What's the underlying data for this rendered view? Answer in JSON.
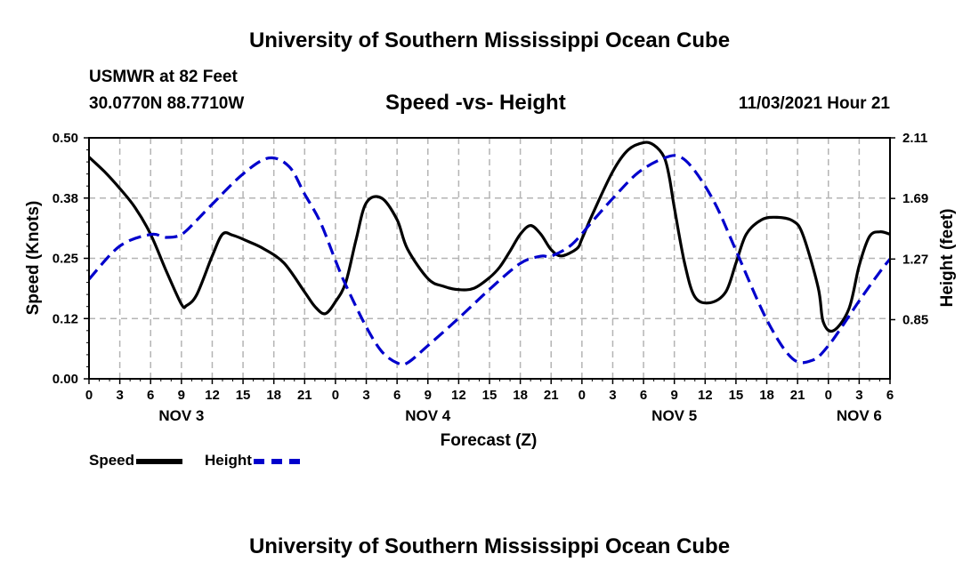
{
  "header": {
    "title": "University of Southern Mississippi Ocean Cube",
    "station": "USMWR at 82 Feet",
    "coordinates": "30.0770N  88.7710W",
    "subtitle": "Speed -vs- Height",
    "datetime": "11/03/2021 Hour 21"
  },
  "footer": {
    "title": "University of Southern Mississippi Ocean Cube"
  },
  "legend": {
    "speed_label": "Speed",
    "height_label": "Height"
  },
  "colors": {
    "speed": "#000000",
    "height": "#0000cc",
    "grid": "#b4b4b4"
  },
  "chart_data": {
    "type": "line",
    "title": "Speed -vs- Height",
    "xlabel": "Forecast (Z)",
    "ylabel": "Speed (Knots)",
    "y2label": "Height (feet)",
    "xlim": [
      0,
      78
    ],
    "ylim": [
      0,
      0.5
    ],
    "y2lim": [
      0.44,
      2.11
    ],
    "x_ticks": [
      0,
      3,
      6,
      9,
      12,
      15,
      18,
      21,
      24,
      27,
      30,
      33,
      36,
      39,
      42,
      45,
      48,
      51,
      54,
      57,
      60,
      63,
      66,
      69,
      72,
      75,
      78
    ],
    "x_tick_labels": [
      "0",
      "3",
      "6",
      "9",
      "12",
      "15",
      "18",
      "21",
      "0",
      "3",
      "6",
      "9",
      "12",
      "15",
      "18",
      "21",
      "0",
      "3",
      "6",
      "9",
      "12",
      "15",
      "18",
      "21",
      "0",
      "3",
      "6"
    ],
    "y_ticks": [
      0,
      0.125,
      0.25,
      0.375,
      0.5
    ],
    "y_tick_labels": [
      "0.00",
      "0.12",
      "0.25",
      "0.38",
      "0.50"
    ],
    "y2_ticks": [
      0.85,
      1.27,
      1.69,
      2.11
    ],
    "y2_tick_labels": [
      "0.85",
      "1.27",
      "1.69",
      "2.11"
    ],
    "day_labels": [
      {
        "x": 9,
        "label": "NOV 3"
      },
      {
        "x": 33,
        "label": "NOV 4"
      },
      {
        "x": 57,
        "label": "NOV 5"
      },
      {
        "x": 75,
        "label": "NOV 6"
      }
    ],
    "grid": true,
    "series": [
      {
        "name": "Speed",
        "axis": "left",
        "style": "solid",
        "x": [
          0,
          1.5,
          3,
          4.5,
          6,
          7.5,
          9,
          9.5,
          10.5,
          12,
          13,
          14,
          15.5,
          17,
          19,
          21,
          22,
          23,
          24,
          25,
          26,
          27,
          28.5,
          30,
          31,
          33,
          34.5,
          36,
          37.5,
          39,
          40,
          41,
          42,
          43,
          44,
          45,
          46,
          47.5,
          48,
          49,
          51,
          52.5,
          54,
          55,
          56,
          56.5,
          57,
          58,
          59,
          60.5,
          62,
          63,
          64,
          65.5,
          67,
          68.5,
          69.5,
          71,
          71.5,
          72.5,
          74,
          75,
          76,
          77,
          78
        ],
        "values": [
          0.46,
          0.43,
          0.395,
          0.355,
          0.3,
          0.225,
          0.155,
          0.152,
          0.175,
          0.255,
          0.3,
          0.298,
          0.285,
          0.27,
          0.24,
          0.18,
          0.15,
          0.135,
          0.16,
          0.2,
          0.288,
          0.365,
          0.375,
          0.33,
          0.27,
          0.208,
          0.192,
          0.185,
          0.188,
          0.21,
          0.232,
          0.265,
          0.3,
          0.318,
          0.3,
          0.268,
          0.255,
          0.27,
          0.29,
          0.34,
          0.43,
          0.475,
          0.49,
          0.485,
          0.46,
          0.42,
          0.355,
          0.24,
          0.17,
          0.158,
          0.18,
          0.24,
          0.3,
          0.33,
          0.335,
          0.328,
          0.3,
          0.19,
          0.118,
          0.1,
          0.145,
          0.235,
          0.295,
          0.305,
          0.3
        ]
      },
      {
        "name": "Height",
        "axis": "right",
        "style": "dashed",
        "x": [
          0,
          3,
          6,
          7.5,
          9,
          10.5,
          12,
          15,
          17.5,
          19.5,
          21,
          22.5,
          24,
          25,
          27,
          28.5,
          30,
          31,
          33,
          36,
          39,
          42,
          44,
          45,
          47,
          49,
          51,
          53.5,
          56,
          57.5,
          59,
          61,
          63,
          66,
          68.5,
          70.5,
          72,
          73.5,
          75,
          77,
          78
        ],
        "values": [
          1.13,
          1.36,
          1.44,
          1.42,
          1.44,
          1.54,
          1.65,
          1.86,
          1.97,
          1.91,
          1.72,
          1.53,
          1.26,
          1.09,
          0.8,
          0.63,
          0.55,
          0.55,
          0.67,
          0.86,
          1.06,
          1.24,
          1.29,
          1.29,
          1.37,
          1.53,
          1.69,
          1.87,
          1.97,
          1.98,
          1.88,
          1.65,
          1.33,
          0.85,
          0.58,
          0.57,
          0.67,
          0.82,
          0.98,
          1.18,
          1.27
        ]
      }
    ]
  }
}
